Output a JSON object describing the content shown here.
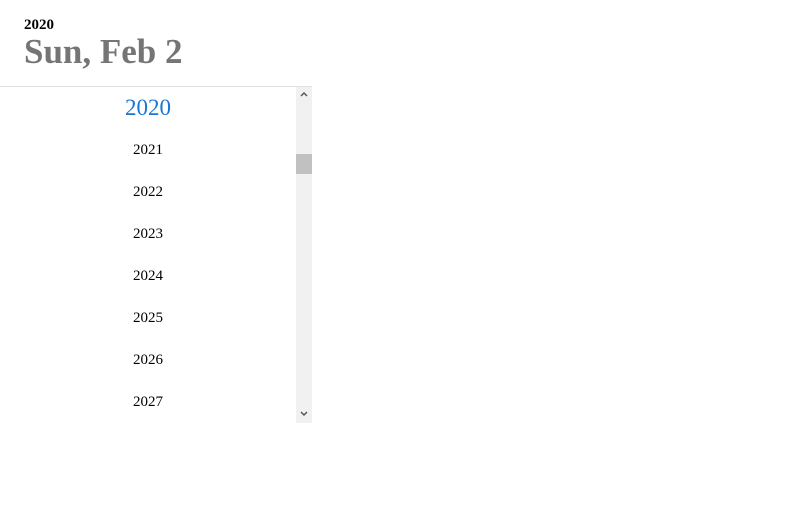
{
  "header": {
    "year": "2020",
    "date": "Sun, Feb 2"
  },
  "year_list": {
    "selected": "2020",
    "items": [
      "2020",
      "2021",
      "2022",
      "2023",
      "2024",
      "2025",
      "2026",
      "2027"
    ]
  },
  "scrollbar": {
    "position": 0.18
  },
  "colors": {
    "selected": "#1976d2",
    "date_text": "#757575",
    "scrollbar_track": "#f1f1f1",
    "scrollbar_thumb": "#c1c1c1"
  }
}
